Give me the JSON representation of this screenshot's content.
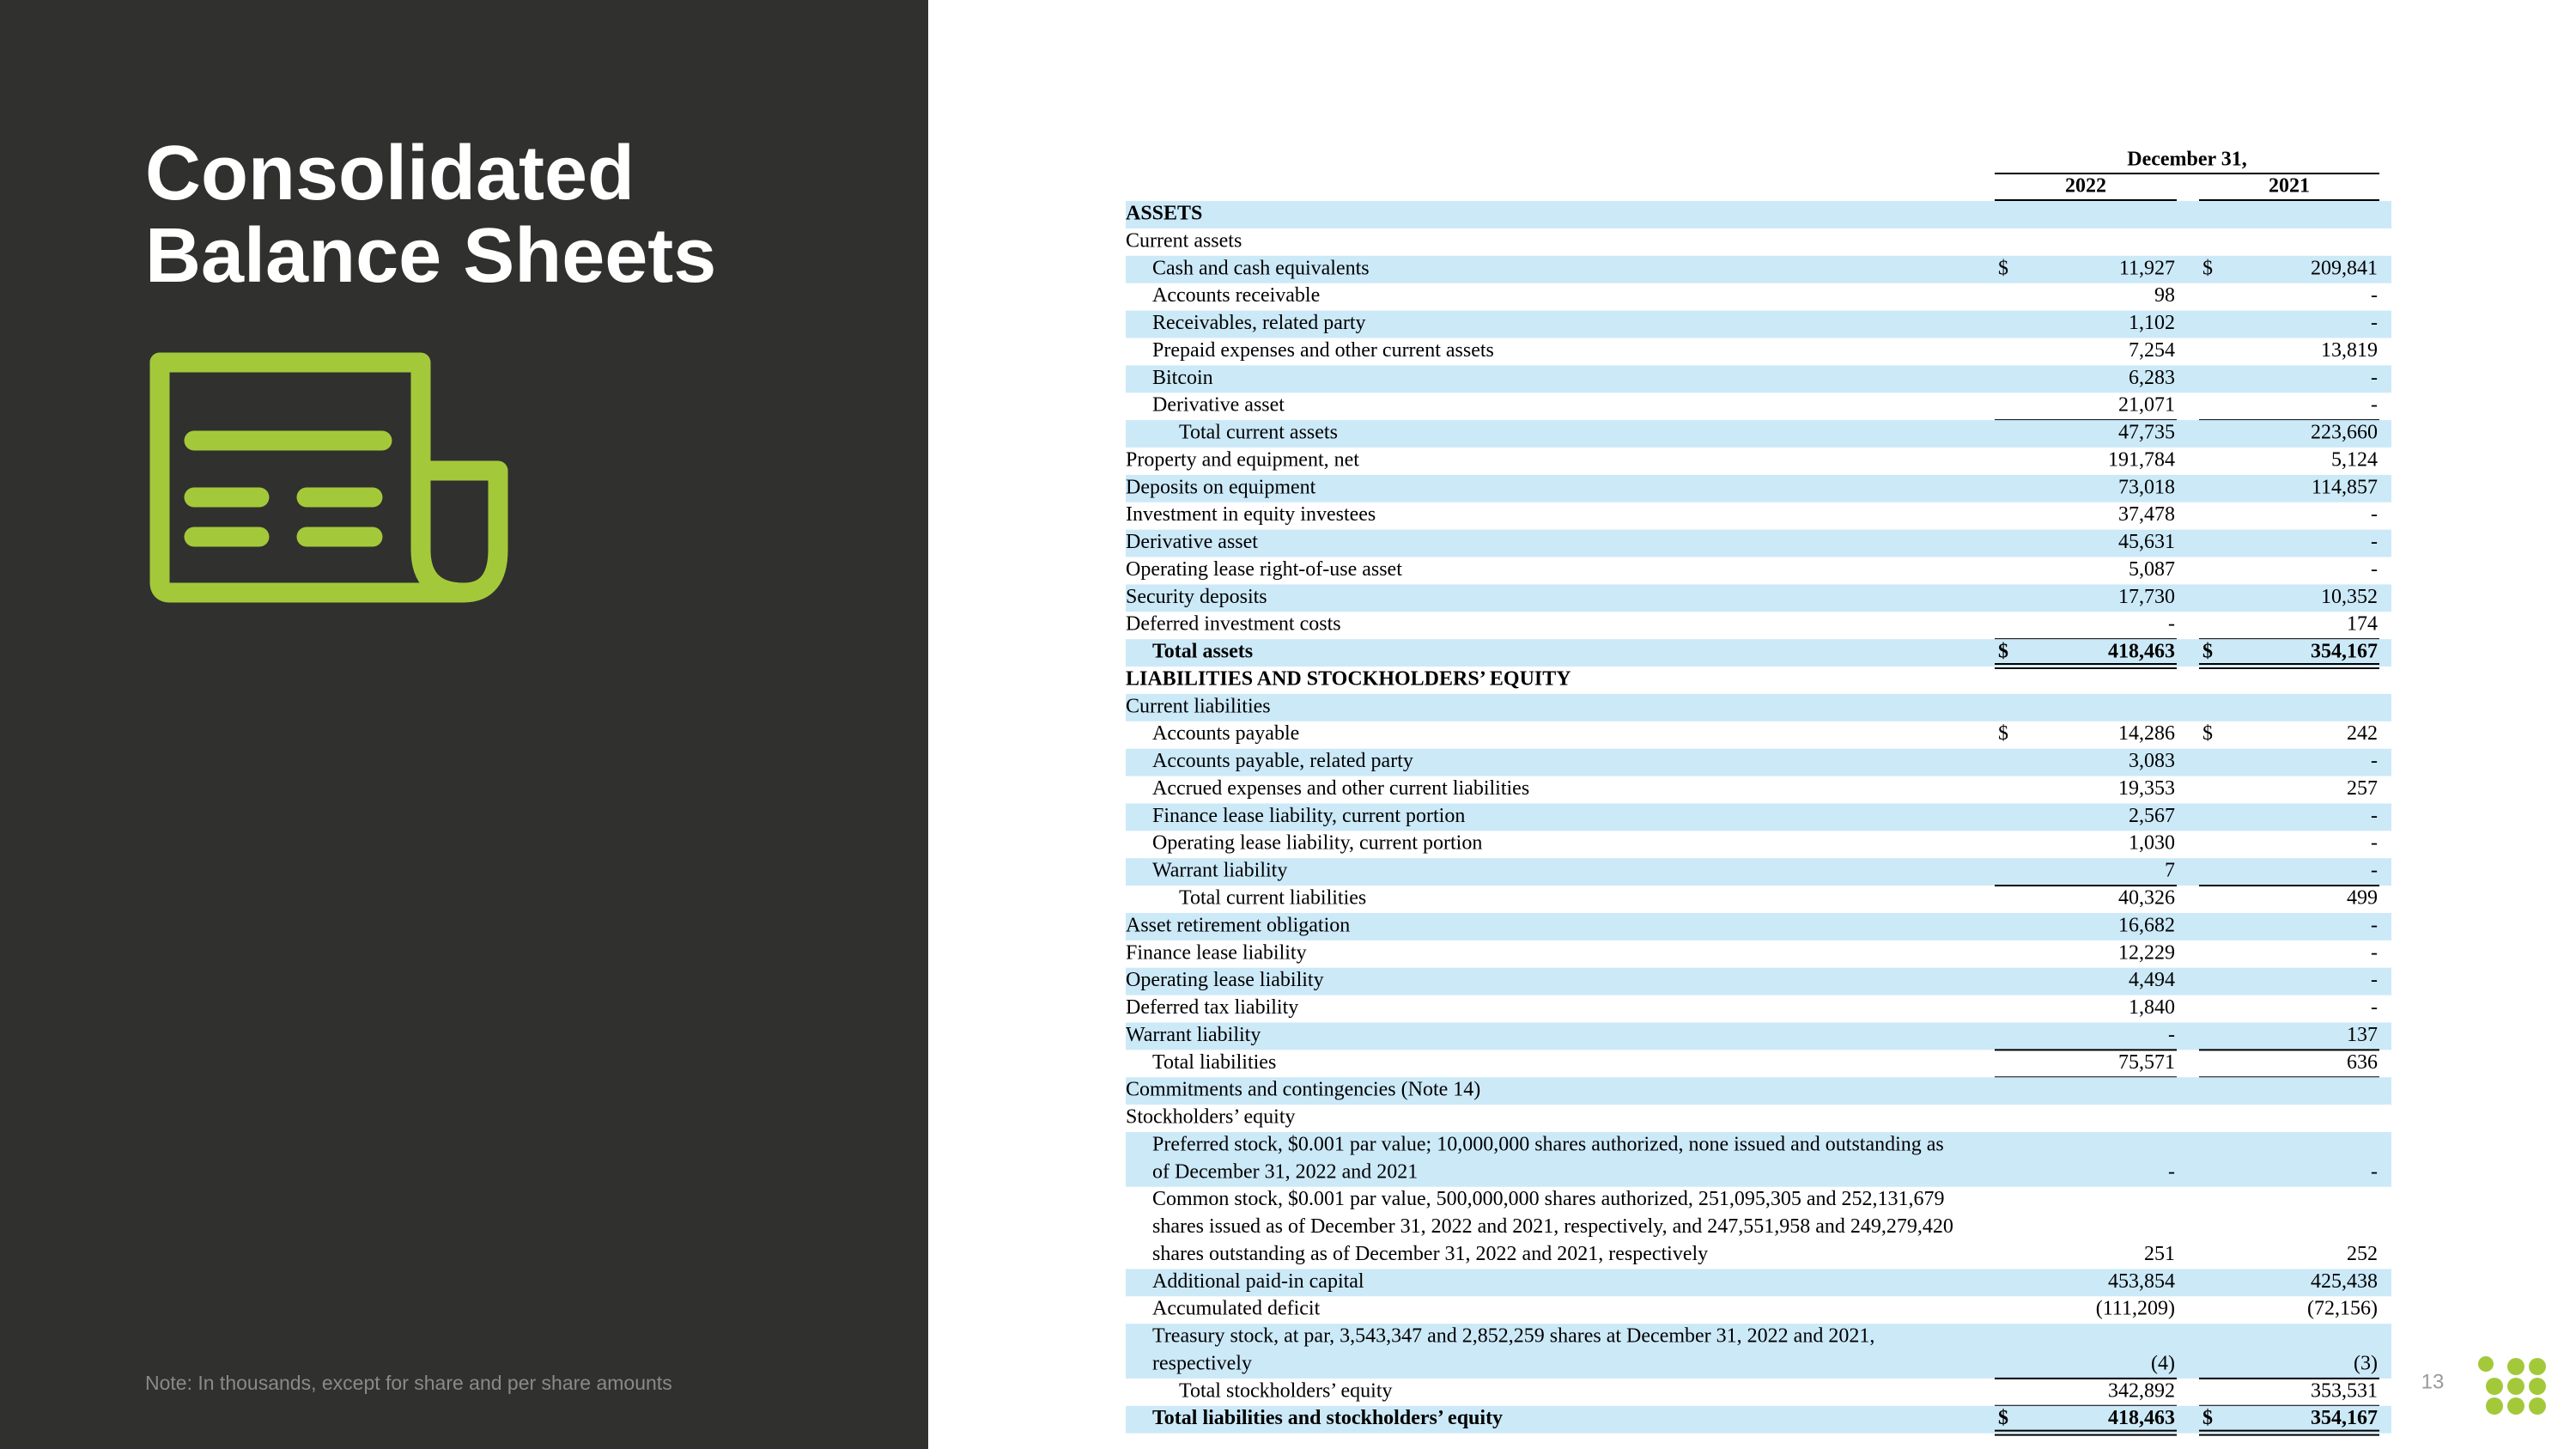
{
  "header": {
    "title_lines": [
      "Consolidated",
      "Balance Sheets"
    ],
    "note": "Note: In thousands, except for share and per share amounts",
    "page_number": "13"
  },
  "table": {
    "period": "December 31,",
    "columns": [
      "2022",
      "2021"
    ],
    "rows": [
      {
        "lines": [
          "ASSETS"
        ],
        "cells": []
      },
      {
        "lines": [
          "Current assets"
        ],
        "cells": []
      },
      {
        "lines": [
          "Cash and cash equivalents"
        ],
        "cells": [
          "$",
          "11,927",
          "$",
          "209,841"
        ]
      },
      {
        "lines": [
          "Accounts receivable"
        ],
        "cells": [
          "98",
          "-"
        ]
      },
      {
        "lines": [
          "Receivables, related party"
        ],
        "cells": [
          "1,102",
          "-"
        ]
      },
      {
        "lines": [
          "Prepaid expenses and other current assets"
        ],
        "cells": [
          "7,254",
          "13,819"
        ]
      },
      {
        "lines": [
          "Bitcoin"
        ],
        "cells": [
          "6,283",
          "-"
        ]
      },
      {
        "lines": [
          "Derivative asset"
        ],
        "cells": [
          "21,071",
          "-"
        ]
      },
      {
        "lines": [
          "Total current assets"
        ],
        "cells": [
          "47,735",
          "223,660"
        ]
      },
      {
        "lines": [
          "Property and equipment, net"
        ],
        "cells": [
          "191,784",
          "5,124"
        ]
      },
      {
        "lines": [
          "Deposits on equipment"
        ],
        "cells": [
          "73,018",
          "114,857"
        ]
      },
      {
        "lines": [
          "Investment in equity investees"
        ],
        "cells": [
          "37,478",
          "-"
        ]
      },
      {
        "lines": [
          "Derivative asset"
        ],
        "cells": [
          "45,631",
          "-"
        ]
      },
      {
        "lines": [
          "Operating lease right-of-use asset"
        ],
        "cells": [
          "5,087",
          "-"
        ]
      },
      {
        "lines": [
          "Security deposits"
        ],
        "cells": [
          "17,730",
          "10,352"
        ]
      },
      {
        "lines": [
          "Deferred investment costs"
        ],
        "cells": [
          "-",
          "174"
        ]
      },
      {
        "lines": [
          "Total assets"
        ],
        "cells": [
          "$",
          "418,463",
          "$",
          "354,167"
        ]
      },
      {
        "lines": [
          "LIABILITIES AND STOCKHOLDERS’ EQUITY"
        ],
        "cells": []
      },
      {
        "lines": [
          "Current liabilities"
        ],
        "cells": []
      },
      {
        "lines": [
          "Accounts payable"
        ],
        "cells": [
          "$",
          "14,286",
          "$",
          "242"
        ]
      },
      {
        "lines": [
          "Accounts payable, related party"
        ],
        "cells": [
          "3,083",
          "-"
        ]
      },
      {
        "lines": [
          "Accrued expenses and other current liabilities"
        ],
        "cells": [
          "19,353",
          "257"
        ]
      },
      {
        "lines": [
          "Finance lease liability, current portion"
        ],
        "cells": [
          "2,567",
          "-"
        ]
      },
      {
        "lines": [
          "Operating lease liability, current portion"
        ],
        "cells": [
          "1,030",
          "-"
        ]
      },
      {
        "lines": [
          "Warrant liability"
        ],
        "cells": [
          "7",
          "-"
        ]
      },
      {
        "lines": [
          "Total current liabilities"
        ],
        "cells": [
          "40,326",
          "499"
        ]
      },
      {
        "lines": [
          "Asset retirement obligation"
        ],
        "cells": [
          "16,682",
          "-"
        ]
      },
      {
        "lines": [
          "Finance lease liability"
        ],
        "cells": [
          "12,229",
          "-"
        ]
      },
      {
        "lines": [
          "Operating lease liability"
        ],
        "cells": [
          "4,494",
          "-"
        ]
      },
      {
        "lines": [
          "Deferred tax liability"
        ],
        "cells": [
          "1,840",
          "-"
        ]
      },
      {
        "lines": [
          "Warrant liability"
        ],
        "cells": [
          "-",
          "137"
        ]
      },
      {
        "lines": [
          "Total liabilities"
        ],
        "cells": [
          "75,571",
          "636"
        ]
      },
      {
        "lines": [
          "Commitments and contingencies (Note 14)"
        ],
        "cells": []
      },
      {
        "lines": [
          "Stockholders’ equity"
        ],
        "cells": []
      },
      {
        "lines": [
          "Preferred stock, $0.001 par value; 10,000,000 shares authorized, none issued and outstanding as",
          "of December 31, 2022 and 2021"
        ],
        "cells": [
          "-",
          "-"
        ]
      },
      {
        "lines": [
          "Common stock, $0.001 par value, 500,000,000 shares authorized, 251,095,305 and 252,131,679",
          "shares issued as of December 31, 2022 and 2021, respectively, and 247,551,958 and 249,279,420",
          "shares outstanding as of December 31, 2022 and 2021, respectively"
        ],
        "cells": [
          "251",
          "252"
        ]
      },
      {
        "lines": [
          "Additional paid-in capital"
        ],
        "cells": [
          "453,854",
          "425,438"
        ]
      },
      {
        "lines": [
          "Accumulated deficit"
        ],
        "cells": [
          "(111,209)",
          "(72,156)"
        ]
      },
      {
        "lines": [
          "Treasury stock, at par, 3,543,347 and 2,852,259 shares at December 31, 2022 and 2021,",
          "respectively"
        ],
        "cells": [
          "(4)",
          "(3)"
        ]
      },
      {
        "lines": [
          "Total stockholders’ equity"
        ],
        "cells": [
          "342,892",
          "353,531"
        ]
      },
      {
        "lines": [
          "Total liabilities and stockholders’ equity"
        ],
        "cells": [
          "$",
          "418,463",
          "$",
          "354,167"
        ]
      }
    ]
  }
}
